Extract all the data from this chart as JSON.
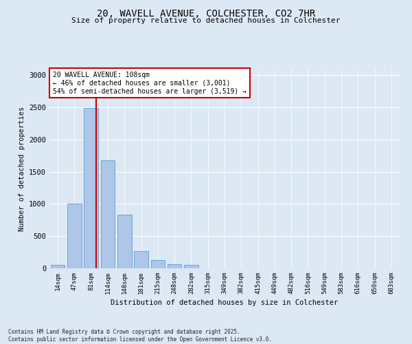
{
  "title_line1": "20, WAVELL AVENUE, COLCHESTER, CO2 7HR",
  "title_line2": "Size of property relative to detached houses in Colchester",
  "xlabel": "Distribution of detached houses by size in Colchester",
  "ylabel": "Number of detached properties",
  "bin_labels": [
    "14sqm",
    "47sqm",
    "81sqm",
    "114sqm",
    "148sqm",
    "181sqm",
    "215sqm",
    "248sqm",
    "282sqm",
    "315sqm",
    "349sqm",
    "382sqm",
    "415sqm",
    "449sqm",
    "482sqm",
    "516sqm",
    "549sqm",
    "583sqm",
    "616sqm",
    "650sqm",
    "683sqm"
  ],
  "bar_values": [
    55,
    1000,
    2490,
    1680,
    830,
    265,
    130,
    60,
    50,
    0,
    0,
    0,
    0,
    0,
    0,
    0,
    0,
    0,
    0,
    0,
    0
  ],
  "bar_color": "#aec6e8",
  "bar_edge_color": "#5a9fd4",
  "property_label": "20 WAVELL AVENUE: 108sqm",
  "annotation_line2": "← 46% of detached houses are smaller (3,001)",
  "annotation_line3": "54% of semi-detached houses are larger (3,519) →",
  "vline_color": "#cc0000",
  "annotation_box_color": "#ffffff",
  "annotation_box_edge": "#cc0000",
  "ylim": [
    0,
    3100
  ],
  "yticks": [
    0,
    500,
    1000,
    1500,
    2000,
    2500,
    3000
  ],
  "footer_line1": "Contains HM Land Registry data © Crown copyright and database right 2025.",
  "footer_line2": "Contains public sector information licensed under the Open Government Licence v3.0.",
  "background_color": "#dde8f5"
}
